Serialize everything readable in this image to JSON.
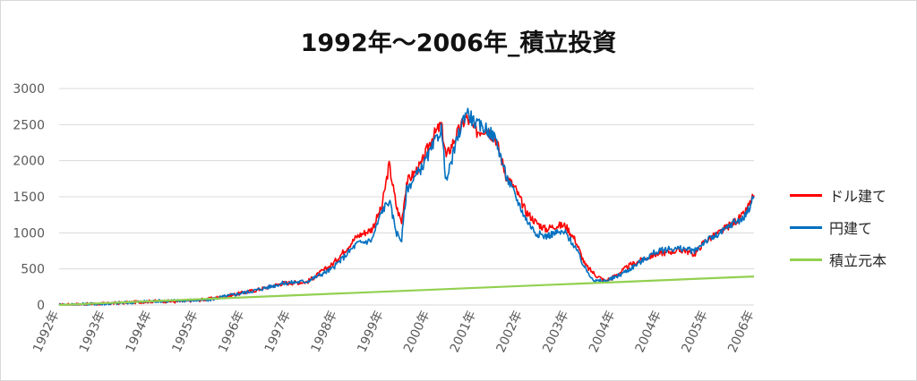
{
  "chart_data": {
    "type": "line",
    "title": "1992年～2006年_積立投資",
    "xlabel": "",
    "ylabel": "",
    "x_range": [
      1992.0,
      2006.0
    ],
    "ylim": [
      0,
      3000
    ],
    "y_ticks": [
      0,
      500,
      1000,
      1500,
      2000,
      2500,
      3000
    ],
    "y_tick_labels": [
      "0",
      "500",
      "1000",
      "1500",
      "2000",
      "2500",
      "3000"
    ],
    "x_tick_labels": [
      "1992年",
      "1993年",
      "1994年",
      "1995年",
      "1996年",
      "1997年",
      "1998年",
      "1999年",
      "2000年",
      "2001年",
      "2002年",
      "2003年",
      "2004年",
      "2004年",
      "2005年",
      "2006年"
    ],
    "grid": true,
    "legend_position": "right",
    "series": [
      {
        "name": "ドル建て",
        "color": "#ff0000",
        "points": [
          [
            1992.0,
            0
          ],
          [
            1993.0,
            20
          ],
          [
            1994.0,
            55
          ],
          [
            1994.4,
            45
          ],
          [
            1995.0,
            80
          ],
          [
            1995.5,
            140
          ],
          [
            1996.0,
            210
          ],
          [
            1996.5,
            300
          ],
          [
            1997.0,
            320
          ],
          [
            1997.5,
            560
          ],
          [
            1998.0,
            950
          ],
          [
            1998.3,
            1050
          ],
          [
            1998.5,
            1350
          ],
          [
            1998.65,
            1950
          ],
          [
            1998.8,
            1350
          ],
          [
            1998.9,
            1150
          ],
          [
            1999.0,
            1700
          ],
          [
            1999.3,
            1950
          ],
          [
            1999.5,
            2300
          ],
          [
            1999.7,
            2500
          ],
          [
            1999.8,
            2050
          ],
          [
            2000.0,
            2350
          ],
          [
            2000.2,
            2600
          ],
          [
            2000.4,
            2400
          ],
          [
            2000.6,
            2450
          ],
          [
            2000.8,
            2300
          ],
          [
            2001.0,
            1800
          ],
          [
            2001.2,
            1600
          ],
          [
            2001.4,
            1300
          ],
          [
            2001.6,
            1150
          ],
          [
            2001.8,
            1050
          ],
          [
            2002.0,
            1100
          ],
          [
            2002.2,
            1100
          ],
          [
            2002.4,
            900
          ],
          [
            2002.6,
            550
          ],
          [
            2002.8,
            420
          ],
          [
            2003.0,
            330
          ],
          [
            2003.2,
            400
          ],
          [
            2003.5,
            550
          ],
          [
            2004.0,
            700
          ],
          [
            2004.3,
            740
          ],
          [
            2004.6,
            760
          ],
          [
            2004.8,
            700
          ],
          [
            2005.0,
            880
          ],
          [
            2005.3,
            1000
          ],
          [
            2005.6,
            1150
          ],
          [
            2005.8,
            1250
          ],
          [
            2006.0,
            1520
          ]
        ]
      },
      {
        "name": "円建て",
        "color": "#0070c0",
        "points": [
          [
            1992.0,
            0
          ],
          [
            1993.0,
            20
          ],
          [
            1994.0,
            55
          ],
          [
            1994.4,
            60
          ],
          [
            1995.0,
            70
          ],
          [
            1995.5,
            140
          ],
          [
            1996.0,
            210
          ],
          [
            1996.5,
            300
          ],
          [
            1997.0,
            330
          ],
          [
            1997.5,
            500
          ],
          [
            1998.0,
            850
          ],
          [
            1998.3,
            900
          ],
          [
            1998.5,
            1300
          ],
          [
            1998.65,
            1450
          ],
          [
            1998.8,
            1000
          ],
          [
            1998.9,
            900
          ],
          [
            1999.0,
            1600
          ],
          [
            1999.3,
            1900
          ],
          [
            1999.5,
            2150
          ],
          [
            1999.7,
            2450
          ],
          [
            1999.8,
            1700
          ],
          [
            2000.0,
            2250
          ],
          [
            2000.2,
            2700
          ],
          [
            2000.4,
            2500
          ],
          [
            2000.6,
            2450
          ],
          [
            2000.8,
            2300
          ],
          [
            2001.0,
            1800
          ],
          [
            2001.2,
            1500
          ],
          [
            2001.4,
            1200
          ],
          [
            2001.6,
            1000
          ],
          [
            2001.8,
            950
          ],
          [
            2002.0,
            1000
          ],
          [
            2002.2,
            1000
          ],
          [
            2002.4,
            800
          ],
          [
            2002.6,
            500
          ],
          [
            2002.8,
            330
          ],
          [
            2003.0,
            330
          ],
          [
            2003.2,
            380
          ],
          [
            2003.5,
            500
          ],
          [
            2004.0,
            730
          ],
          [
            2004.3,
            780
          ],
          [
            2004.6,
            780
          ],
          [
            2004.8,
            740
          ],
          [
            2005.0,
            880
          ],
          [
            2005.3,
            980
          ],
          [
            2005.6,
            1150
          ],
          [
            2005.8,
            1200
          ],
          [
            2006.0,
            1500
          ]
        ]
      },
      {
        "name": "積立元本",
        "color": "#92d050",
        "points": [
          [
            1992.0,
            0
          ],
          [
            2006.0,
            395
          ]
        ]
      }
    ]
  }
}
